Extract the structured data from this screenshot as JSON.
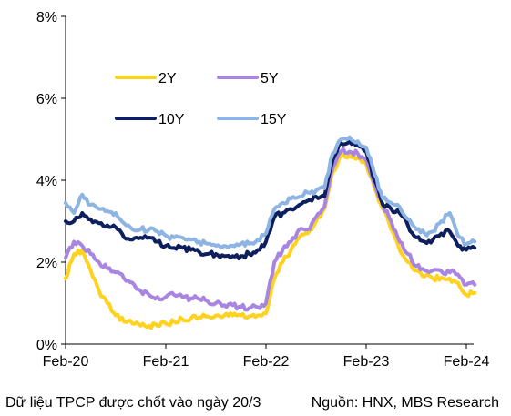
{
  "chart_data": {
    "type": "line",
    "y_axis": {
      "range": [
        0,
        8
      ],
      "ticks": [
        0,
        2,
        4,
        6,
        8
      ],
      "tick_labels": [
        "0%",
        "2%",
        "4%",
        "6%",
        "8%"
      ]
    },
    "x_axis": {
      "range": [
        "2020-02",
        "2024-02"
      ],
      "ticks": [
        "2020-02",
        "2021-02",
        "2022-02",
        "2023-02",
        "2024-02"
      ],
      "tick_labels": [
        "Feb-20",
        "Feb-21",
        "Feb-22",
        "Feb-23",
        "Feb-24"
      ]
    },
    "grid": "none",
    "legend_placement": "top-left, two columns",
    "series": [
      {
        "name": "2Y",
        "color": "#FFD21F",
        "points": [
          [
            "2020-02",
            1.6
          ],
          [
            "2020-03",
            2.2
          ],
          [
            "2020-04",
            2.3
          ],
          [
            "2020-05",
            1.8
          ],
          [
            "2020-06",
            1.3
          ],
          [
            "2020-07",
            1.0
          ],
          [
            "2020-08",
            0.7
          ],
          [
            "2020-09",
            0.55
          ],
          [
            "2020-10",
            0.5
          ],
          [
            "2020-11",
            0.45
          ],
          [
            "2020-12",
            0.45
          ],
          [
            "2021-01",
            0.45
          ],
          [
            "2021-02",
            0.5
          ],
          [
            "2021-03",
            0.55
          ],
          [
            "2021-04",
            0.6
          ],
          [
            "2021-05",
            0.62
          ],
          [
            "2021-06",
            0.65
          ],
          [
            "2021-07",
            0.68
          ],
          [
            "2021-08",
            0.7
          ],
          [
            "2021-09",
            0.7
          ],
          [
            "2021-10",
            0.7
          ],
          [
            "2021-11",
            0.7
          ],
          [
            "2021-12",
            0.68
          ],
          [
            "2022-01",
            0.7
          ],
          [
            "2022-02",
            0.75
          ],
          [
            "2022-03",
            1.6
          ],
          [
            "2022-04",
            2.0
          ],
          [
            "2022-05",
            2.3
          ],
          [
            "2022-06",
            2.6
          ],
          [
            "2022-07",
            2.7
          ],
          [
            "2022-08",
            3.0
          ],
          [
            "2022-09",
            3.3
          ],
          [
            "2022-10",
            4.2
          ],
          [
            "2022-11",
            4.6
          ],
          [
            "2022-12",
            4.6
          ],
          [
            "2023-01",
            4.55
          ],
          [
            "2023-02",
            4.4
          ],
          [
            "2023-03",
            3.8
          ],
          [
            "2023-04",
            3.3
          ],
          [
            "2023-05",
            2.8
          ],
          [
            "2023-06",
            2.3
          ],
          [
            "2023-07",
            2.0
          ],
          [
            "2023-08",
            1.8
          ],
          [
            "2023-09",
            1.65
          ],
          [
            "2023-10",
            1.6
          ],
          [
            "2023-11",
            1.62
          ],
          [
            "2023-12",
            1.6
          ],
          [
            "2024-01",
            1.5
          ],
          [
            "2024-02",
            1.2
          ],
          [
            "2024-03",
            1.25
          ]
        ]
      },
      {
        "name": "5Y",
        "color": "#A985E2",
        "points": [
          [
            "2020-02",
            2.1
          ],
          [
            "2020-03",
            2.5
          ],
          [
            "2020-04",
            2.4
          ],
          [
            "2020-05",
            2.2
          ],
          [
            "2020-06",
            2.0
          ],
          [
            "2020-07",
            1.85
          ],
          [
            "2020-08",
            1.75
          ],
          [
            "2020-09",
            1.6
          ],
          [
            "2020-10",
            1.5
          ],
          [
            "2020-11",
            1.3
          ],
          [
            "2020-12",
            1.2
          ],
          [
            "2021-01",
            1.15
          ],
          [
            "2021-02",
            1.15
          ],
          [
            "2021-03",
            1.2
          ],
          [
            "2021-04",
            1.15
          ],
          [
            "2021-05",
            1.12
          ],
          [
            "2021-06",
            1.1
          ],
          [
            "2021-07",
            1.05
          ],
          [
            "2021-08",
            1.0
          ],
          [
            "2021-09",
            0.95
          ],
          [
            "2021-10",
            0.95
          ],
          [
            "2021-11",
            0.9
          ],
          [
            "2021-12",
            0.88
          ],
          [
            "2022-01",
            0.9
          ],
          [
            "2022-02",
            1.0
          ],
          [
            "2022-03",
            2.0
          ],
          [
            "2022-04",
            2.3
          ],
          [
            "2022-05",
            2.5
          ],
          [
            "2022-06",
            2.8
          ],
          [
            "2022-07",
            2.8
          ],
          [
            "2022-08",
            3.1
          ],
          [
            "2022-09",
            3.35
          ],
          [
            "2022-10",
            4.3
          ],
          [
            "2022-11",
            4.7
          ],
          [
            "2022-12",
            4.7
          ],
          [
            "2023-01",
            4.65
          ],
          [
            "2023-02",
            4.5
          ],
          [
            "2023-03",
            3.9
          ],
          [
            "2023-04",
            3.4
          ],
          [
            "2023-05",
            3.0
          ],
          [
            "2023-06",
            2.5
          ],
          [
            "2023-07",
            2.2
          ],
          [
            "2023-08",
            1.9
          ],
          [
            "2023-09",
            1.8
          ],
          [
            "2023-10",
            1.8
          ],
          [
            "2023-11",
            1.78
          ],
          [
            "2023-12",
            1.75
          ],
          [
            "2024-01",
            1.7
          ],
          [
            "2024-02",
            1.45
          ],
          [
            "2024-03",
            1.45
          ]
        ]
      },
      {
        "name": "10Y",
        "color": "#0E1F5E",
        "points": [
          [
            "2020-02",
            3.0
          ],
          [
            "2020-03",
            3.0
          ],
          [
            "2020-04",
            3.2
          ],
          [
            "2020-05",
            3.05
          ],
          [
            "2020-06",
            2.95
          ],
          [
            "2020-07",
            2.9
          ],
          [
            "2020-08",
            2.85
          ],
          [
            "2020-09",
            2.6
          ],
          [
            "2020-10",
            2.55
          ],
          [
            "2020-11",
            2.6
          ],
          [
            "2020-12",
            2.6
          ],
          [
            "2021-01",
            2.5
          ],
          [
            "2021-02",
            2.4
          ],
          [
            "2021-03",
            2.35
          ],
          [
            "2021-04",
            2.35
          ],
          [
            "2021-05",
            2.3
          ],
          [
            "2021-06",
            2.25
          ],
          [
            "2021-07",
            2.2
          ],
          [
            "2021-08",
            2.2
          ],
          [
            "2021-09",
            2.15
          ],
          [
            "2021-10",
            2.15
          ],
          [
            "2021-11",
            2.15
          ],
          [
            "2021-12",
            2.2
          ],
          [
            "2022-01",
            2.3
          ],
          [
            "2022-02",
            2.5
          ],
          [
            "2022-03",
            3.1
          ],
          [
            "2022-04",
            3.2
          ],
          [
            "2022-05",
            3.3
          ],
          [
            "2022-06",
            3.4
          ],
          [
            "2022-07",
            3.5
          ],
          [
            "2022-08",
            3.6
          ],
          [
            "2022-09",
            3.6
          ],
          [
            "2022-10",
            4.5
          ],
          [
            "2022-11",
            4.9
          ],
          [
            "2022-12",
            4.95
          ],
          [
            "2023-01",
            4.85
          ],
          [
            "2023-02",
            4.7
          ],
          [
            "2023-03",
            4.0
          ],
          [
            "2023-04",
            3.4
          ],
          [
            "2023-05",
            3.3
          ],
          [
            "2023-06",
            3.2
          ],
          [
            "2023-07",
            2.9
          ],
          [
            "2023-08",
            2.6
          ],
          [
            "2023-09",
            2.5
          ],
          [
            "2023-10",
            2.55
          ],
          [
            "2023-11",
            2.7
          ],
          [
            "2023-12",
            2.75
          ],
          [
            "2024-01",
            2.4
          ],
          [
            "2024-02",
            2.3
          ],
          [
            "2024-03",
            2.35
          ]
        ]
      },
      {
        "name": "15Y",
        "color": "#8EB4E3",
        "points": [
          [
            "2020-02",
            3.45
          ],
          [
            "2020-03",
            3.2
          ],
          [
            "2020-04",
            3.65
          ],
          [
            "2020-05",
            3.4
          ],
          [
            "2020-06",
            3.3
          ],
          [
            "2020-07",
            3.25
          ],
          [
            "2020-08",
            3.2
          ],
          [
            "2020-09",
            2.95
          ],
          [
            "2020-10",
            2.8
          ],
          [
            "2020-11",
            2.8
          ],
          [
            "2020-12",
            2.8
          ],
          [
            "2021-01",
            2.75
          ],
          [
            "2021-02",
            2.65
          ],
          [
            "2021-03",
            2.6
          ],
          [
            "2021-04",
            2.6
          ],
          [
            "2021-05",
            2.55
          ],
          [
            "2021-06",
            2.5
          ],
          [
            "2021-07",
            2.45
          ],
          [
            "2021-08",
            2.4
          ],
          [
            "2021-09",
            2.4
          ],
          [
            "2021-10",
            2.4
          ],
          [
            "2021-11",
            2.45
          ],
          [
            "2021-12",
            2.45
          ],
          [
            "2022-01",
            2.55
          ],
          [
            "2022-02",
            2.7
          ],
          [
            "2022-03",
            3.3
          ],
          [
            "2022-04",
            3.45
          ],
          [
            "2022-05",
            3.55
          ],
          [
            "2022-06",
            3.6
          ],
          [
            "2022-07",
            3.7
          ],
          [
            "2022-08",
            3.75
          ],
          [
            "2022-09",
            3.8
          ],
          [
            "2022-10",
            4.65
          ],
          [
            "2022-11",
            5.0
          ],
          [
            "2022-12",
            5.05
          ],
          [
            "2023-01",
            4.95
          ],
          [
            "2023-02",
            4.8
          ],
          [
            "2023-03",
            4.15
          ],
          [
            "2023-04",
            3.55
          ],
          [
            "2023-05",
            3.45
          ],
          [
            "2023-06",
            3.35
          ],
          [
            "2023-07",
            3.05
          ],
          [
            "2023-08",
            2.8
          ],
          [
            "2023-09",
            2.7
          ],
          [
            "2023-10",
            2.75
          ],
          [
            "2023-11",
            3.0
          ],
          [
            "2023-12",
            3.2
          ],
          [
            "2024-01",
            2.65
          ],
          [
            "2024-02",
            2.45
          ],
          [
            "2024-03",
            2.5
          ]
        ]
      }
    ]
  },
  "footer": {
    "note": "Dữ liệu TPCP được chốt vào ngày 20/3",
    "source": "Nguồn: HNX, MBS Research"
  }
}
